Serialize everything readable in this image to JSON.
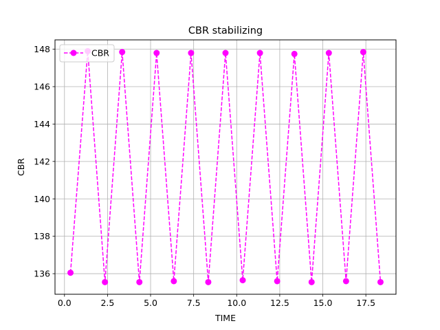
{
  "chart_data": {
    "type": "line",
    "title": "CBR stabilizing",
    "xlabel": "TIME",
    "ylabel": "CBR",
    "xlim": [
      -0.55,
      19.25
    ],
    "ylim": [
      134.9,
      148.5
    ],
    "xticks": [
      0.0,
      2.5,
      5.0,
      7.5,
      10.0,
      12.5,
      15.0,
      17.5
    ],
    "xtick_labels": [
      "0.0",
      "2.5",
      "5.0",
      "7.5",
      "10.0",
      "12.5",
      "15.0",
      "17.5"
    ],
    "yticks": [
      136,
      138,
      140,
      142,
      144,
      146,
      148
    ],
    "ytick_labels": [
      "136",
      "138",
      "140",
      "142",
      "144",
      "146",
      "148"
    ],
    "grid": true,
    "legend_position": "top-left",
    "series": [
      {
        "name": "CBR",
        "color": "#ff00ff",
        "linestyle": "dashed",
        "marker": "circle",
        "x": [
          0.35,
          1.35,
          2.35,
          3.35,
          4.35,
          5.35,
          6.35,
          7.35,
          8.35,
          9.35,
          10.35,
          11.35,
          12.35,
          13.35,
          14.35,
          15.35,
          16.35,
          17.35,
          18.35
        ],
        "y": [
          136.05,
          147.9,
          135.55,
          147.85,
          135.55,
          147.8,
          135.6,
          147.8,
          135.55,
          147.8,
          135.65,
          147.8,
          135.6,
          147.75,
          135.55,
          147.8,
          135.6,
          147.85,
          135.55
        ]
      }
    ]
  }
}
